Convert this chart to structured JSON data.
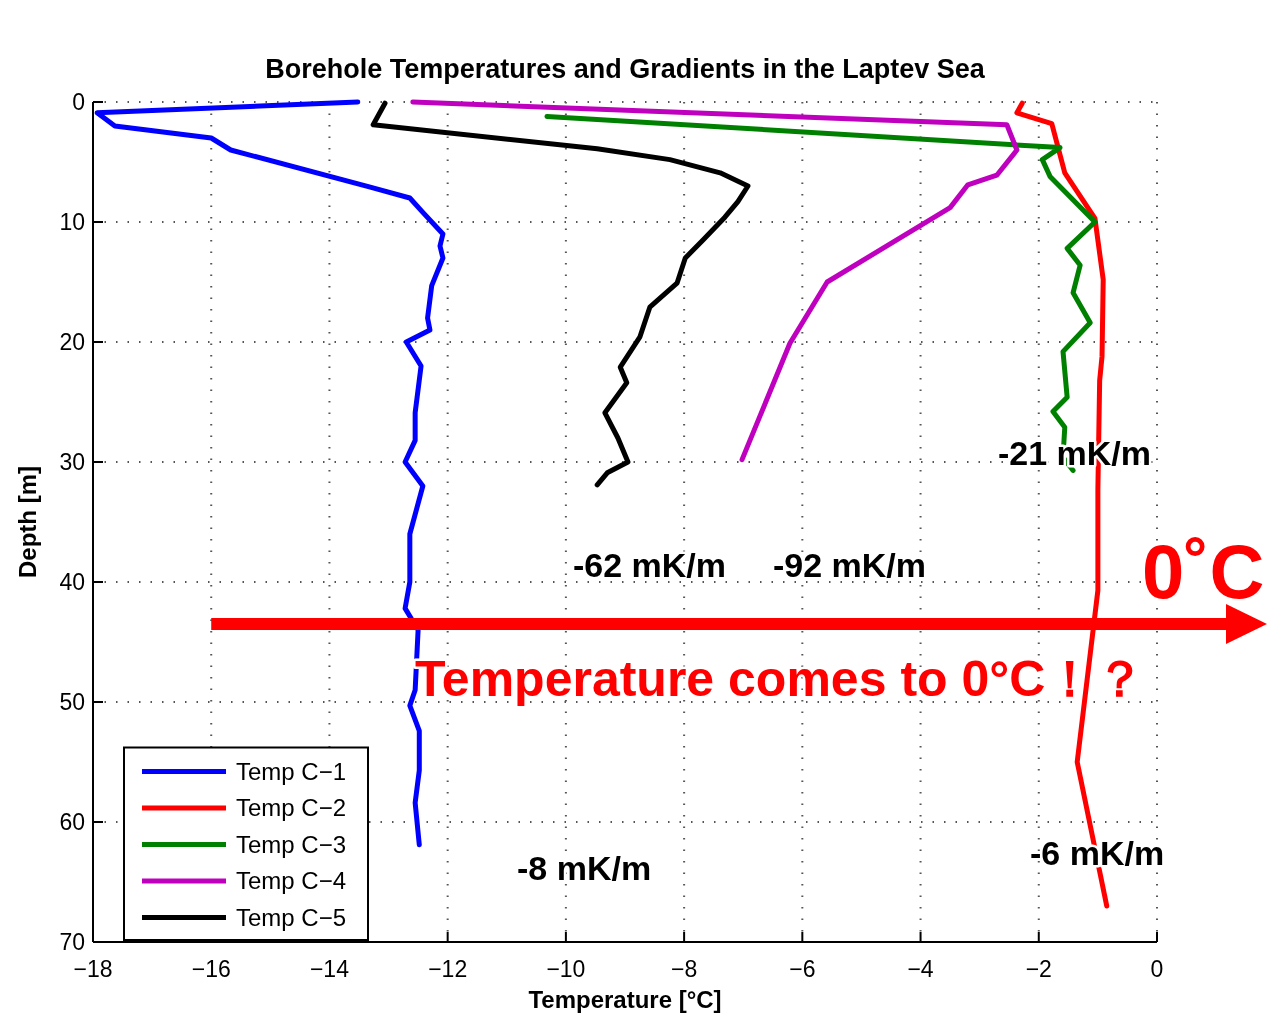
{
  "chart_data": {
    "type": "line",
    "title": "Borehole Temperatures and Gradients in the Laptev Sea",
    "xlabel": "Temperature [°C]",
    "ylabel": "Depth [m]",
    "xlim": [
      -18,
      0
    ],
    "xticks": [
      {
        "value": -18,
        "label": "−18"
      },
      {
        "value": -16,
        "label": "−16"
      },
      {
        "value": -14,
        "label": "−14"
      },
      {
        "value": -12,
        "label": "−12"
      },
      {
        "value": -10,
        "label": "−10"
      },
      {
        "value": -8,
        "label": "−8"
      },
      {
        "value": -6,
        "label": "−6"
      },
      {
        "value": -4,
        "label": "−4"
      },
      {
        "value": -2,
        "label": "−2"
      },
      0
    ],
    "ylim": [
      70,
      0
    ],
    "yticks": [
      0,
      10,
      20,
      30,
      40,
      50,
      60,
      70
    ],
    "grid": true,
    "legend": "bottom left",
    "line_style": "solid",
    "series": [
      {
        "name": "Temp C−1",
        "color": "#0000ff",
        "x": [
          -13.52,
          -17.93,
          -17.63,
          -16.0,
          -15.67,
          -13.31,
          -12.64,
          -12.42,
          -12.08,
          -12.13,
          -12.08,
          -12.27,
          -12.34,
          -12.3,
          -12.7,
          -12.45,
          -12.55,
          -12.55,
          -12.72,
          -12.42,
          -12.64,
          -12.64,
          -12.72,
          -12.5,
          -12.55,
          -12.64,
          -12.48,
          -12.48,
          -12.55,
          -12.48
        ],
        "values": [
          0,
          0.9,
          2,
          3,
          4,
          7.1,
          8,
          9.2,
          11,
          12,
          13,
          15.3,
          18,
          19,
          20,
          22,
          25.9,
          28.2,
          30,
          32,
          36,
          40,
          42.2,
          44,
          49,
          50.3,
          52.4,
          55.7,
          58.4,
          61.9
        ]
      },
      {
        "name": "Temp C−2",
        "color": "#ff0000",
        "x": [
          -2.28,
          -2.37,
          -1.78,
          -1.56,
          -1.05,
          -0.91,
          -0.93,
          -0.97,
          -1.0,
          -1.0,
          -1.35,
          -0.85
        ],
        "values": [
          0.1,
          0.9,
          1.8,
          5.9,
          9.7,
          14.8,
          21.2,
          23.2,
          32.3,
          40.7,
          55,
          67
        ]
      },
      {
        "name": "Temp C−3",
        "color": "#008000",
        "x": [
          -10.32,
          -1.64,
          -1.94,
          -1.81,
          -1.05,
          -1.52,
          -1.3,
          -1.42,
          -1.13,
          -1.59,
          -1.52,
          -1.76,
          -1.56,
          -1.59,
          -1.42
        ],
        "values": [
          1.2,
          3.8,
          4.8,
          6.2,
          10,
          12.2,
          13.6,
          15.9,
          18.4,
          20.8,
          24.6,
          25.8,
          27.1,
          29.6,
          30.7
        ]
      },
      {
        "name": "Temp C−4",
        "color": "#bf00bf",
        "x": [
          -12.59,
          -2.54,
          -2.37,
          -2.71,
          -3.2,
          -3.5,
          -5.58,
          -6.21,
          -7.02
        ],
        "values": [
          0,
          1.9,
          4,
          6.1,
          6.9,
          8.8,
          15,
          20.1,
          29.8
        ]
      },
      {
        "name": "Temp C−5",
        "color": "#000000",
        "x": [
          -13.06,
          -13.26,
          -9.47,
          -8.24,
          -7.39,
          -6.92,
          -7.09,
          -7.31,
          -7.68,
          -7.98,
          -8.12,
          -8.58,
          -8.75,
          -9.08,
          -8.97,
          -9.34,
          -9.12,
          -8.95,
          -9.3,
          -9.47
        ],
        "values": [
          0.1,
          1.9,
          3.9,
          4.8,
          5.9,
          7,
          8.3,
          9.6,
          11.5,
          13,
          15.1,
          17.1,
          19.6,
          22.1,
          23.4,
          25.9,
          28,
          30,
          30.9,
          31.9
        ]
      }
    ],
    "annotations": [
      "-21 mK/m",
      "-62 mK/m",
      "-92 mK/m",
      "-8 mK/m",
      "-6 mK/m",
      "0˚C",
      "Temperature comes to 0°C！？"
    ]
  }
}
